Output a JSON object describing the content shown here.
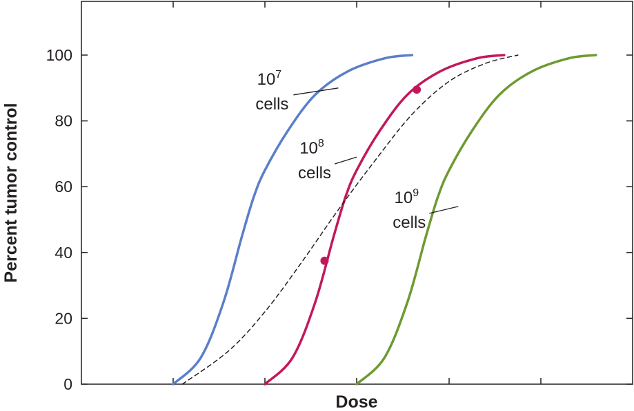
{
  "chart_data": {
    "type": "line",
    "title": "",
    "xlabel": "Dose",
    "ylabel": "Percent tumor control",
    "xlim": [
      0,
      6
    ],
    "ylim": [
      0,
      100
    ],
    "y_ticks": [
      "0",
      "20",
      "40",
      "60",
      "80",
      "100"
    ],
    "x_tick_labels_shown": false,
    "grid": false,
    "series": [
      {
        "color": "#5b7fc7",
        "line_style": "solid",
        "points": [
          [
            1.0,
            0
          ],
          [
            1.3,
            8
          ],
          [
            1.55,
            25
          ],
          [
            1.75,
            45
          ],
          [
            1.88,
            57
          ],
          [
            2.0,
            65
          ],
          [
            2.25,
            77
          ],
          [
            2.55,
            88
          ],
          [
            2.9,
            95
          ],
          [
            3.3,
            99
          ],
          [
            3.6,
            100
          ]
        ]
      },
      {
        "color": "#c2185b",
        "line_style": "solid",
        "points": [
          [
            2.0,
            0
          ],
          [
            2.3,
            8
          ],
          [
            2.55,
            25
          ],
          [
            2.75,
            45
          ],
          [
            2.88,
            57
          ],
          [
            3.0,
            65
          ],
          [
            3.25,
            77
          ],
          [
            3.55,
            88
          ],
          [
            3.9,
            95
          ],
          [
            4.3,
            99
          ],
          [
            4.6,
            100
          ]
        ]
      },
      {
        "color": "#6e9a32",
        "line_style": "solid",
        "points": [
          [
            3.0,
            0
          ],
          [
            3.3,
            8
          ],
          [
            3.55,
            25
          ],
          [
            3.75,
            45
          ],
          [
            3.88,
            57
          ],
          [
            4.0,
            65
          ],
          [
            4.25,
            77
          ],
          [
            4.55,
            88
          ],
          [
            4.9,
            95
          ],
          [
            5.3,
            99
          ],
          [
            5.6,
            100
          ]
        ]
      },
      {
        "color": "#231f20",
        "line_style": "dashed",
        "points": [
          [
            1.1,
            0
          ],
          [
            1.6,
            10
          ],
          [
            2.0,
            22
          ],
          [
            2.4,
            37
          ],
          [
            2.8,
            53
          ],
          [
            3.2,
            68
          ],
          [
            3.6,
            82
          ],
          [
            4.0,
            92
          ],
          [
            4.4,
            97.5
          ],
          [
            4.75,
            100
          ]
        ]
      }
    ],
    "markers": [
      {
        "color": "#c2185b",
        "x": 2.65,
        "y": 37.5
      },
      {
        "color": "#c2185b",
        "x": 3.65,
        "y": 89.5
      }
    ],
    "annotations": [
      {
        "base": "10",
        "exponent": "7",
        "line2": "cells",
        "x": 2.8,
        "y": 90
      },
      {
        "base": "10",
        "exponent": "8",
        "line2": "cells",
        "x": 3.0,
        "y": 69
      },
      {
        "base": "10",
        "exponent": "9",
        "line2": "cells",
        "x": 4.1,
        "y": 54
      }
    ]
  }
}
